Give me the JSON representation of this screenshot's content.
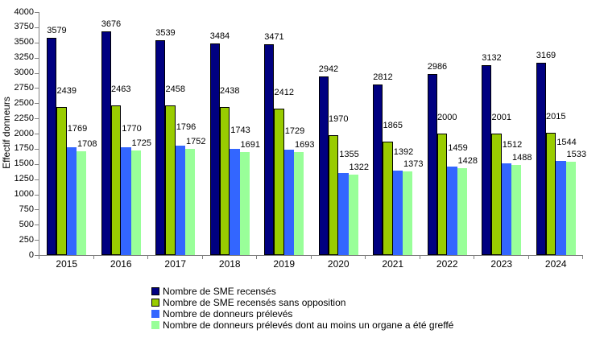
{
  "chart_data": {
    "type": "bar",
    "title": "",
    "ylabel": "Effectif donneurs",
    "xlabel": "",
    "categories": [
      "2015",
      "2016",
      "2017",
      "2018",
      "2019",
      "2020",
      "2021",
      "2022",
      "2023",
      "2024"
    ],
    "series": [
      {
        "name": "Nombre de SME recensés",
        "color": "#000080",
        "border_color": "#000000",
        "values": [
          3579,
          3676,
          3539,
          3484,
          3471,
          2942,
          2812,
          2986,
          3132,
          3169
        ]
      },
      {
        "name": "Nombre de SME recensés sans opposition",
        "color": "#99CC00",
        "border_color": "#000000",
        "values": [
          2439,
          2463,
          2458,
          2438,
          2412,
          1970,
          1865,
          2000,
          2001,
          2015
        ]
      },
      {
        "name": "Nombre de donneurs prélevés",
        "color": "#3366FF",
        "border_color": null,
        "values": [
          1769,
          1770,
          1796,
          1743,
          1729,
          1355,
          1392,
          1459,
          1512,
          1544
        ]
      },
      {
        "name": "Nombre de donneurs prélevés dont au moins un organe a été greffé",
        "color": "#99FF99",
        "border_color": null,
        "values": [
          1708,
          1725,
          1752,
          1691,
          1693,
          1322,
          1373,
          1428,
          1488,
          1533
        ]
      }
    ],
    "ylim": [
      0,
      4000
    ],
    "ytick_step": 250,
    "grid": false,
    "data_labels": true,
    "legend_position": "bottom-center",
    "axis_color": "#808080",
    "text_color": "#000000",
    "background_color": "#FFFFFF"
  }
}
